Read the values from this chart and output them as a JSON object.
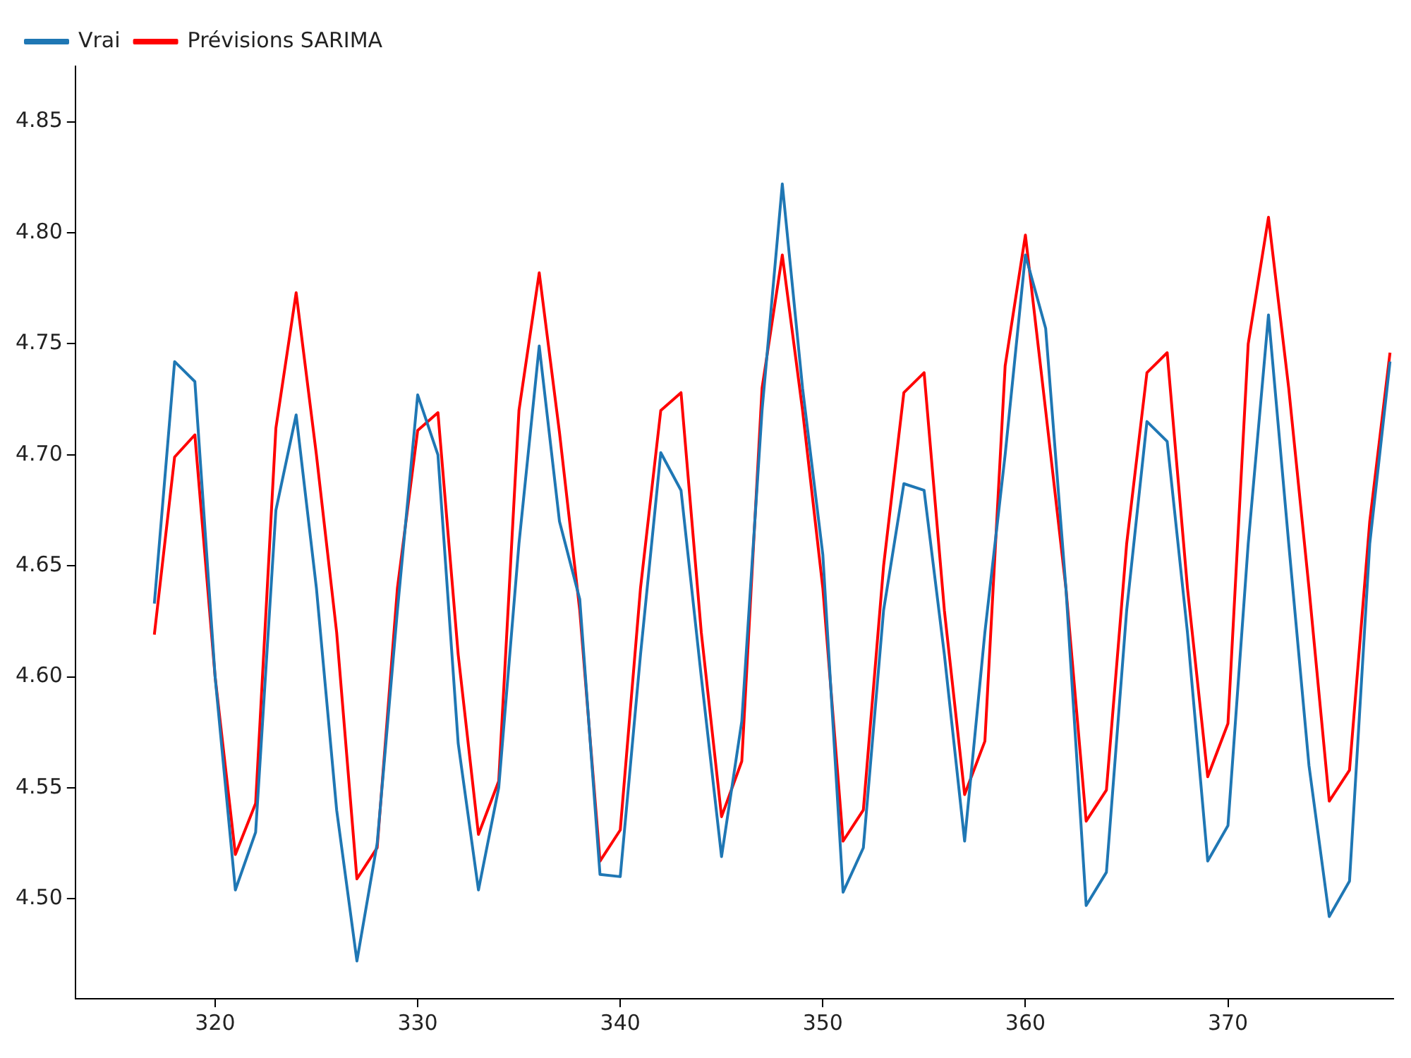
{
  "chart_data": {
    "type": "line",
    "x": [
      317,
      318,
      319,
      320,
      321,
      322,
      323,
      324,
      325,
      326,
      327,
      328,
      329,
      330,
      331,
      332,
      333,
      334,
      335,
      336,
      337,
      338,
      339,
      340,
      341,
      342,
      343,
      344,
      345,
      346,
      347,
      348,
      349,
      350,
      351,
      352,
      353,
      354,
      355,
      356,
      357,
      358,
      359,
      360,
      361,
      362,
      363,
      364,
      365,
      366,
      367,
      368,
      369,
      370,
      371,
      372,
      373,
      374,
      375,
      376,
      377,
      378
    ],
    "series": [
      {
        "name": "Vrai",
        "color": "#1f77b4",
        "values": [
          4.633,
          4.742,
          4.733,
          4.6,
          4.504,
          4.53,
          4.675,
          4.718,
          4.64,
          4.54,
          4.472,
          4.525,
          4.63,
          4.727,
          4.7,
          4.57,
          4.504,
          4.55,
          4.66,
          4.749,
          4.67,
          4.635,
          4.511,
          4.51,
          4.61,
          4.701,
          4.684,
          4.6,
          4.519,
          4.58,
          4.72,
          4.822,
          4.73,
          4.655,
          4.503,
          4.523,
          4.63,
          4.687,
          4.684,
          4.61,
          4.526,
          4.62,
          4.7,
          4.79,
          4.757,
          4.64,
          4.497,
          4.512,
          4.63,
          4.715,
          4.706,
          4.62,
          4.517,
          4.533,
          4.66,
          4.763,
          4.66,
          4.56,
          4.492,
          4.508,
          4.66,
          4.742
        ]
      },
      {
        "name": "Prévisions SARIMA",
        "color": "#ff0000",
        "values": [
          4.619,
          4.699,
          4.709,
          4.6,
          4.52,
          4.543,
          4.712,
          4.773,
          4.7,
          4.62,
          4.509,
          4.523,
          4.64,
          4.711,
          4.719,
          4.61,
          4.529,
          4.553,
          4.72,
          4.782,
          4.71,
          4.63,
          4.517,
          4.531,
          4.64,
          4.72,
          4.728,
          4.62,
          4.537,
          4.562,
          4.73,
          4.79,
          4.72,
          4.64,
          4.526,
          4.54,
          4.65,
          4.728,
          4.737,
          4.63,
          4.547,
          4.571,
          4.74,
          4.799,
          4.72,
          4.64,
          4.535,
          4.549,
          4.66,
          4.737,
          4.746,
          4.64,
          4.555,
          4.579,
          4.75,
          4.807,
          4.73,
          4.64,
          4.544,
          4.558,
          4.67,
          4.746
        ]
      }
    ],
    "xlim": [
      313.1,
      378.2
    ],
    "xticks": [
      320,
      330,
      340,
      350,
      360,
      370
    ],
    "ylim": [
      4.455,
      4.875
    ],
    "yticks": [
      {
        "value": 4.5,
        "label": "4.50"
      },
      4.55,
      {
        "value": 4.6,
        "label": "4.60"
      },
      4.65,
      {
        "value": 4.7,
        "label": "4.70"
      },
      4.75,
      {
        "value": 4.8,
        "label": "4.80"
      },
      4.85
    ],
    "grid": false,
    "legend": "top left",
    "marker": "none",
    "line_style": "solid"
  }
}
